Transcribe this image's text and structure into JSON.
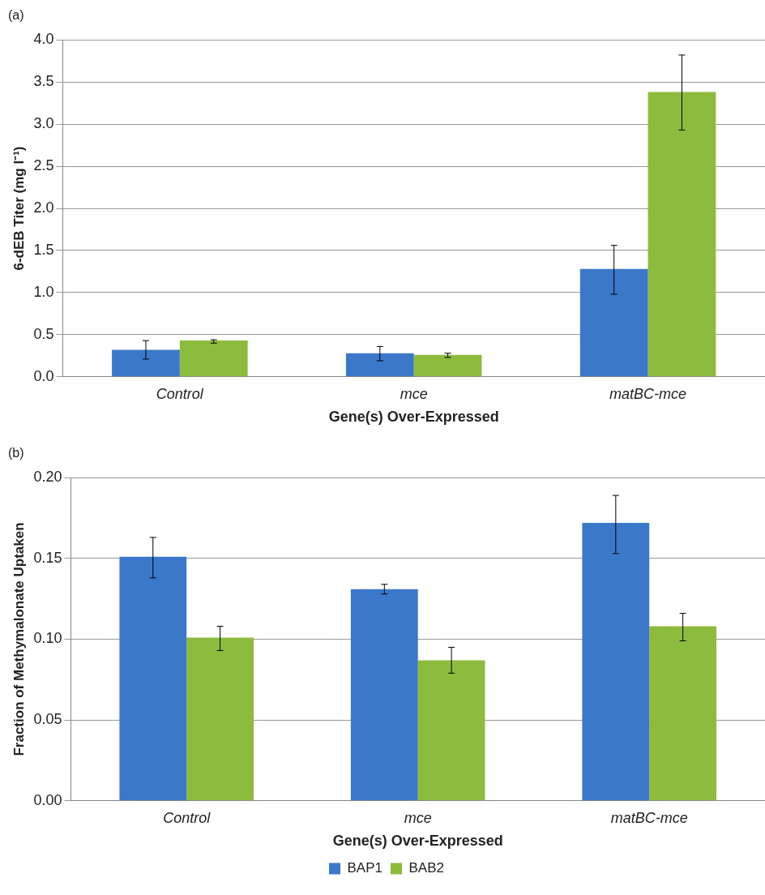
{
  "chart_data": [
    {
      "type": "bar",
      "title": "(a)",
      "xlabel": "Gene(s) Over-Expressed",
      "ylabel": "6-dEB Titer (mg l⁻¹)",
      "categories": [
        "Control",
        "mce",
        "matBC-mce"
      ],
      "series": [
        {
          "color": "#3b78c9",
          "values": [
            0.32,
            0.28,
            1.28
          ],
          "errors": [
            [
              0.21,
              0.43
            ],
            [
              0.19,
              0.36
            ],
            [
              0.98,
              1.56
            ]
          ]
        },
        {
          "color": "#8dbb3e",
          "values": [
            0.43,
            0.26,
            3.38
          ],
          "errors": [
            [
              0.4,
              0.44
            ],
            [
              0.23,
              0.28
            ],
            [
              2.93,
              3.82
            ]
          ]
        }
      ],
      "ylim": [
        0,
        4
      ],
      "yticks": [
        {
          "value": 0,
          "label": "0.0"
        },
        {
          "value": 0.5,
          "label": "0.5"
        },
        {
          "value": 1,
          "label": "1.0"
        },
        {
          "value": 1.5,
          "label": "1.5"
        },
        {
          "value": 2,
          "label": "2.0"
        },
        {
          "value": 2.5,
          "label": "2.5"
        },
        {
          "value": 3,
          "label": "3.0"
        },
        {
          "value": 3.5,
          "label": "3.5"
        },
        {
          "value": 4,
          "label": "4.0"
        }
      ],
      "grid": "y",
      "legend": false
    },
    {
      "type": "bar",
      "title": "(b)",
      "xlabel": "Gene(s) Over-Expressed",
      "ylabel": "Fraction of Methymalonate Uptaken",
      "categories": [
        "Control",
        "mce",
        "matBC-mce"
      ],
      "series": [
        {
          "name": "BAP1",
          "color": "#3b78c9",
          "values": [
            0.151,
            0.131,
            0.172
          ],
          "errors": [
            [
              0.138,
              0.163
            ],
            [
              0.128,
              0.134
            ],
            [
              0.153,
              0.189
            ]
          ]
        },
        {
          "name": "BAB2",
          "color": "#8dbb3e",
          "values": [
            0.101,
            0.087,
            0.108
          ],
          "errors": [
            [
              0.093,
              0.108
            ],
            [
              0.079,
              0.095
            ],
            [
              0.099,
              0.116
            ]
          ]
        }
      ],
      "ylim": [
        0,
        0.2
      ],
      "yticks": [
        {
          "value": 0,
          "label": "0.00"
        },
        {
          "value": 0.05,
          "label": "0.05"
        },
        {
          "value": 0.1,
          "label": "0.10"
        },
        {
          "value": 0.15,
          "label": "0.15"
        },
        {
          "value": 0.2,
          "label": "0.20"
        }
      ],
      "grid": "y",
      "legend": "bottom"
    }
  ]
}
